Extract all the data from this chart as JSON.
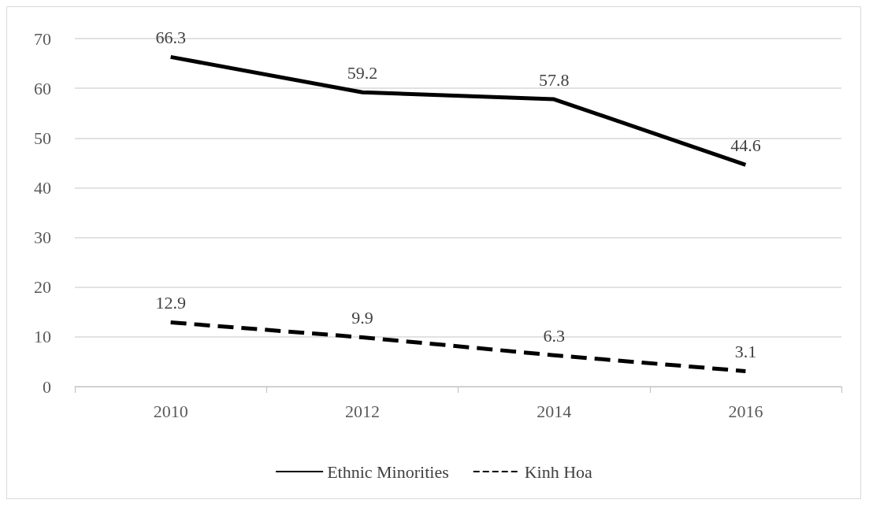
{
  "chart_data": {
    "type": "line",
    "categories": [
      "2010",
      "2012",
      "2014",
      "2016"
    ],
    "series": [
      {
        "name": "Ethnic Minorities",
        "color": "#000000",
        "line_style": "solid",
        "values": [
          66.3,
          59.2,
          57.8,
          44.6
        ]
      },
      {
        "name": "Kinh Hoa",
        "color": "#000000",
        "line_style": "dashed",
        "values": [
          12.9,
          9.9,
          6.3,
          3.1
        ]
      }
    ],
    "ylim": [
      0,
      70
    ],
    "yticks": [
      0,
      10,
      20,
      30,
      40,
      50,
      60,
      70
    ],
    "grid": "y",
    "legend": "bottom",
    "data_labels": true,
    "marker": "none"
  }
}
